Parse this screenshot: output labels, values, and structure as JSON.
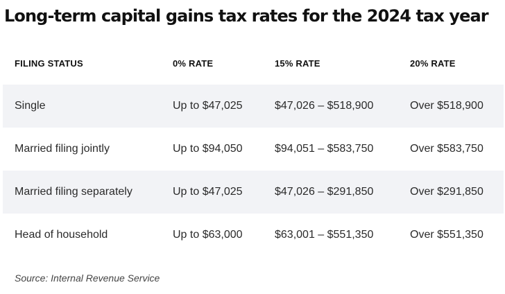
{
  "title": "Long-term capital gains tax rates for the 2024 tax year",
  "table": {
    "headers": [
      "FILING STATUS",
      "0% RATE",
      "15% RATE",
      "20% RATE"
    ],
    "rows": [
      [
        "Single",
        "Up to $47,025",
        "$47,026 – $518,900",
        "Over $518,900"
      ],
      [
        "Married filing jointly",
        "Up to $94,050",
        "$94,051 – $583,750",
        "Over $583,750"
      ],
      [
        "Married filing separately",
        "Up to $47,025",
        "$47,026 – $291,850",
        "Over $291,850"
      ],
      [
        "Head of household",
        "Up to $63,000",
        "$63,001 – $551,350",
        "Over $551,350"
      ]
    ]
  },
  "source": "Source: Internal Revenue Service",
  "colors": {
    "stripe": "#f2f3f6",
    "text": "#2a2a2a",
    "heading": "#111111"
  }
}
